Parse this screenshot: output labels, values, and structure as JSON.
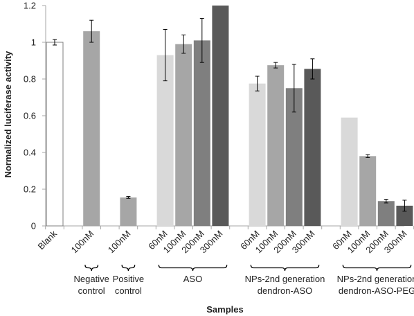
{
  "chart_data": {
    "type": "bar",
    "title": "",
    "xlabel": "Samples",
    "ylabel": "Normalized luciferase activity",
    "ylim": [
      0,
      1.2
    ],
    "yticks": [
      "0",
      "0.2",
      "0.4",
      "0.6",
      "0.8",
      "1",
      "1.2"
    ],
    "grid": false,
    "legend": "none",
    "bars": [
      {
        "label": "Blank",
        "value": 1.0,
        "err": 0.015,
        "style": "outline"
      },
      {
        "label": "",
        "value": null,
        "err": null
      },
      {
        "label": "100nM",
        "value": 1.06,
        "err": 0.06
      },
      {
        "label": "",
        "value": null,
        "err": null
      },
      {
        "label": "100nM",
        "value": 0.155,
        "err": 0.005
      },
      {
        "label": "",
        "value": null,
        "err": null
      },
      {
        "label": "60nM",
        "value": 0.93,
        "err": 0.14
      },
      {
        "label": "100nM",
        "value": 0.99,
        "err": 0.05
      },
      {
        "label": "200nM",
        "value": 1.01,
        "err": 0.12
      },
      {
        "label": "300nM",
        "value": 1.21,
        "err": null
      },
      {
        "label": "",
        "value": null,
        "err": null
      },
      {
        "label": "60nM",
        "value": 0.775,
        "err": 0.04
      },
      {
        "label": "100nM",
        "value": 0.875,
        "err": 0.015
      },
      {
        "label": "200nM",
        "value": 0.75,
        "err": 0.13
      },
      {
        "label": "300nM",
        "value": 0.855,
        "err": 0.055
      },
      {
        "label": "",
        "value": null,
        "err": null
      },
      {
        "label": "60nM",
        "value": 0.59,
        "err": null
      },
      {
        "label": "100nM",
        "value": 0.38,
        "err": 0.008
      },
      {
        "label": "200nM",
        "value": 0.135,
        "err": 0.01
      },
      {
        "label": "300nM",
        "value": 0.11,
        "err": 0.03
      }
    ],
    "groups": [
      {
        "name": [
          "Negative",
          "control"
        ],
        "start": 2,
        "end": 2
      },
      {
        "name": [
          "Positive",
          "control"
        ],
        "start": 4,
        "end": 4
      },
      {
        "name": [
          "ASO"
        ],
        "start": 6,
        "end": 9
      },
      {
        "name": [
          "NPs-2nd generation",
          "dendron-ASO"
        ],
        "start": 11,
        "end": 14
      },
      {
        "name": [
          "NPs-2nd generation",
          "dendron-ASO-PEG"
        ],
        "start": 16,
        "end": 19
      }
    ],
    "colors": {
      "60nM": "#d9d9d9",
      "100nM": "#a6a6a6",
      "200nM": "#7f7f7f",
      "300nM": "#595959",
      "axis": "#a6a6a6",
      "errbar": "#000000"
    }
  }
}
